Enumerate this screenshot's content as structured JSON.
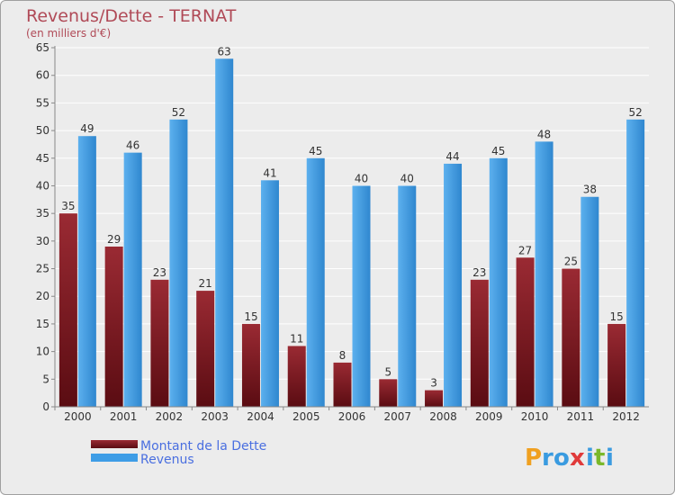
{
  "chart_data": {
    "type": "bar",
    "title": "Revenus/Dette - TERNAT",
    "subtitle": "(en milliers d'€)",
    "categories": [
      "2000",
      "2001",
      "2002",
      "2003",
      "2004",
      "2005",
      "2006",
      "2007",
      "2008",
      "2009",
      "2010",
      "2011",
      "2012"
    ],
    "series": [
      {
        "name": "Montant de la Dette",
        "values": [
          35,
          29,
          23,
          21,
          15,
          11,
          8,
          5,
          3,
          23,
          27,
          25,
          15
        ],
        "color": "#7a1c22"
      },
      {
        "name": "Revenus",
        "values": [
          49,
          46,
          52,
          63,
          41,
          45,
          40,
          40,
          44,
          45,
          48,
          38,
          52
        ],
        "color": "#3e9de6"
      }
    ],
    "ylim": [
      0,
      65
    ],
    "yticks": [
      "0",
      "5",
      "10",
      "15",
      "20",
      "25",
      "30",
      "35",
      "40",
      "45",
      "50",
      "55",
      "60",
      "65"
    ],
    "grid": true,
    "legend_position": "bottom-left"
  },
  "brand": {
    "name": "Proxiti"
  }
}
